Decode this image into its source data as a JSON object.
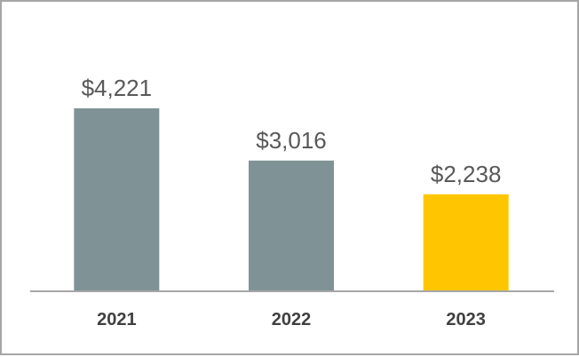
{
  "chart_data": {
    "type": "bar",
    "categories": [
      "2021",
      "2022",
      "2023"
    ],
    "values": [
      4221,
      3016,
      2238
    ],
    "value_labels": [
      "$4,221",
      "$3,016",
      "$2,238"
    ],
    "ylim": [
      0,
      4221
    ],
    "grid": false,
    "legend": "none",
    "colors": {
      "bar": "#7f9396",
      "highlight": "#ffc600",
      "axis": "#a6a6a6",
      "border": "#a6a6a6"
    },
    "highlight_index": 2
  }
}
